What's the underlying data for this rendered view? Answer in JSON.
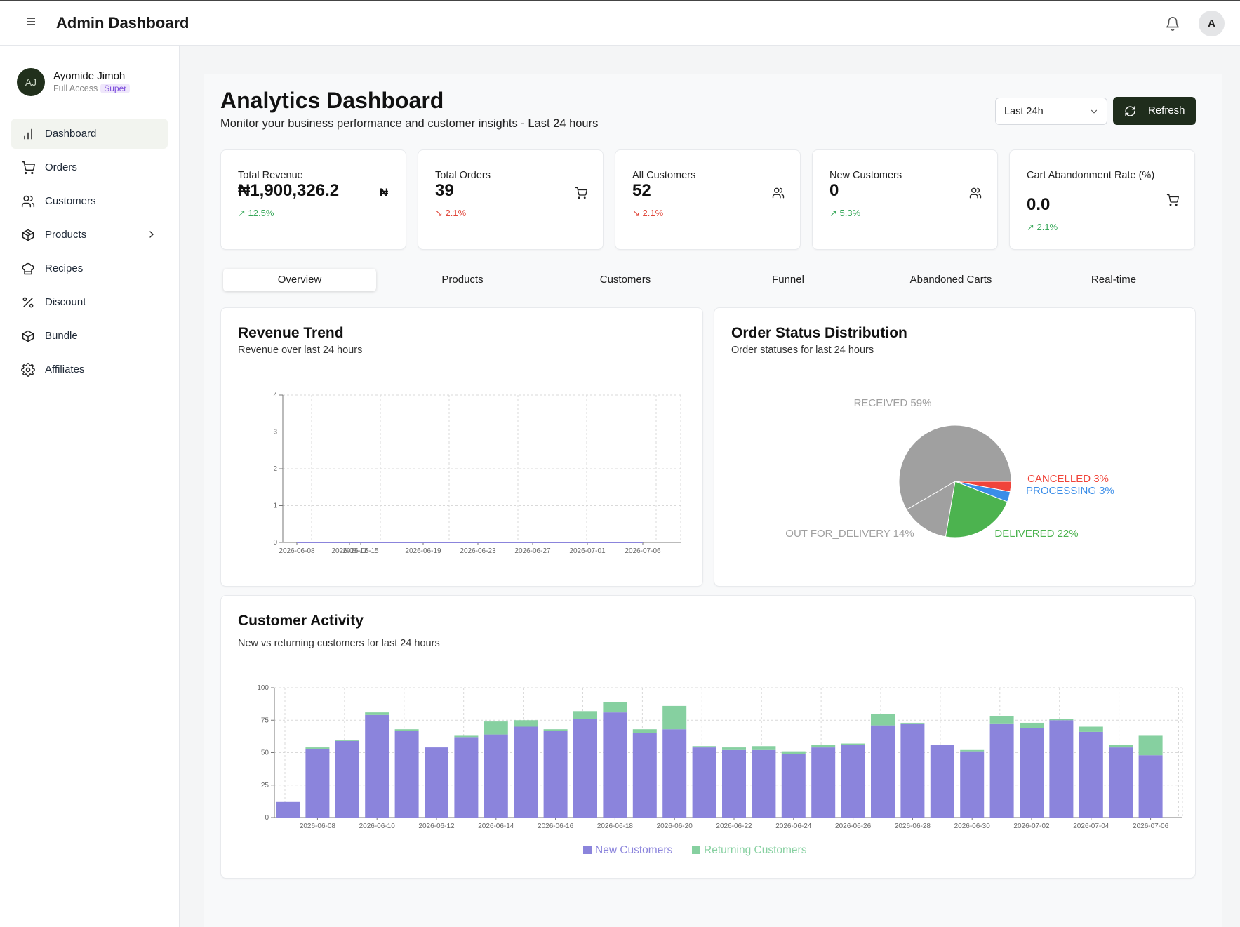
{
  "app": {
    "title": "Admin Dashboard",
    "avatar_initial": "A"
  },
  "user": {
    "initials": "AJ",
    "name": "Ayomide Jimoh",
    "access": "Full Access",
    "role_badge": "Super"
  },
  "sidebar": {
    "items": [
      {
        "label": "Dashboard",
        "icon": "bar-chart-icon",
        "active": true
      },
      {
        "label": "Orders",
        "icon": "cart-icon"
      },
      {
        "label": "Customers",
        "icon": "users-icon"
      },
      {
        "label": "Products",
        "icon": "box-icon",
        "has_submenu": true
      },
      {
        "label": "Recipes",
        "icon": "chef-hat-icon"
      },
      {
        "label": "Discount",
        "icon": "percent-icon"
      },
      {
        "label": "Bundle",
        "icon": "package-icon"
      },
      {
        "label": "Affiliates",
        "icon": "gear-icon"
      }
    ]
  },
  "header": {
    "title": "Analytics Dashboard",
    "subtitle": "Monitor your business performance and customer insights - Last 24 hours",
    "range_value": "Last 24h",
    "refresh_label": "Refresh"
  },
  "stats": [
    {
      "label": "Total Revenue",
      "value": "₦1,900,326.2",
      "change": "12.5%",
      "trend": "up",
      "icon": "naira-icon"
    },
    {
      "label": "Total Orders",
      "value": "39",
      "change": "2.1%",
      "trend": "down",
      "icon": "cart-icon"
    },
    {
      "label": "All Customers",
      "value": "52",
      "change": "2.1%",
      "trend": "down",
      "icon": "users-icon"
    },
    {
      "label": "New Customers",
      "value": "0",
      "change": "5.3%",
      "trend": "up",
      "icon": "users-icon"
    },
    {
      "label": "Cart Abandonment Rate (%)",
      "value": "0.0",
      "change": "2.1%",
      "trend": "up",
      "icon": "cart-icon"
    }
  ],
  "tabs": [
    {
      "label": "Overview",
      "active": true
    },
    {
      "label": "Products"
    },
    {
      "label": "Customers"
    },
    {
      "label": "Funnel"
    },
    {
      "label": "Abandoned Carts"
    },
    {
      "label": "Real-time"
    }
  ],
  "revenue_panel": {
    "title": "Revenue Trend",
    "subtitle": "Revenue over last 24 hours"
  },
  "status_panel": {
    "title": "Order Status Distribution",
    "subtitle": "Order statuses for last 24 hours"
  },
  "activity_panel": {
    "title": "Customer Activity",
    "subtitle": "New vs returning customers for last 24 hours"
  },
  "colors": {
    "accent_dark": "#1f2d1c",
    "up": "#38a85a",
    "down": "#e0463a",
    "new_customers": "#8b84dc",
    "returning_customers": "#86d0a0"
  },
  "chart_data": [
    {
      "type": "line",
      "title": "Revenue Trend",
      "x_ticks": [
        "2026-06-08",
        "2026-06-12",
        "2026-06-15",
        "2026-06-19",
        "2026-06-23",
        "2026-06-27",
        "2026-07-01",
        "2026-07-06"
      ],
      "y_ticks": [
        0,
        1,
        2,
        3,
        4
      ],
      "ylim": [
        0,
        4
      ],
      "series": [
        {
          "values": [
            0,
            0,
            0,
            0,
            0,
            0,
            0,
            0
          ],
          "color": "#8b84dc"
        }
      ],
      "grid": true
    },
    {
      "type": "pie",
      "title": "Order Status Distribution",
      "slices": [
        {
          "label": "RECEIVED",
          "value": 59,
          "color": "#a0a0a0"
        },
        {
          "label": "CANCELLED",
          "value": 3,
          "color": "#f0443a"
        },
        {
          "label": "PROCESSING",
          "value": 3,
          "color": "#3a8de8"
        },
        {
          "label": "DELIVERED",
          "value": 22,
          "color": "#4cb34f"
        },
        {
          "label": "OUT FOR_DELIVERY",
          "value": 14,
          "color": "#a0a0a0"
        }
      ]
    },
    {
      "type": "bar",
      "stacked": true,
      "title": "Customer Activity",
      "categories": [
        "2026-06-07",
        "2026-06-08",
        "2026-06-09",
        "2026-06-10",
        "2026-06-11",
        "2026-06-12",
        "2026-06-13",
        "2026-06-14",
        "2026-06-15",
        "2026-06-16",
        "2026-06-17",
        "2026-06-18",
        "2026-06-19",
        "2026-06-20",
        "2026-06-21",
        "2026-06-22",
        "2026-06-23",
        "2026-06-24",
        "2026-06-25",
        "2026-06-26",
        "2026-06-27",
        "2026-06-28",
        "2026-06-29",
        "2026-06-30",
        "2026-07-01",
        "2026-07-02",
        "2026-07-03",
        "2026-07-04",
        "2026-07-05",
        "2026-07-06"
      ],
      "x_tick_labels": [
        "2026-06-08",
        "2026-06-10",
        "2026-06-12",
        "2026-06-14",
        "2026-06-16",
        "2026-06-18",
        "2026-06-20",
        "2026-06-22",
        "2026-06-24",
        "2026-06-26",
        "2026-06-28",
        "2026-06-30",
        "2026-07-02",
        "2026-07-04",
        "2026-07-06"
      ],
      "y_ticks": [
        0,
        25,
        50,
        75,
        100
      ],
      "ylim": [
        0,
        100
      ],
      "series": [
        {
          "name": "New Customers",
          "color": "#8b84dc",
          "values": [
            12,
            53,
            59,
            79,
            67,
            54,
            62,
            64,
            70,
            67,
            76,
            81,
            65,
            68,
            54,
            52,
            52,
            49,
            54,
            56,
            71,
            72,
            56,
            51,
            72,
            69,
            75,
            66,
            54,
            48
          ]
        },
        {
          "name": "Returning Customers",
          "color": "#86d0a0",
          "values": [
            0,
            1,
            1,
            2,
            1,
            0,
            1,
            10,
            5,
            1,
            6,
            8,
            3,
            18,
            1,
            2,
            3,
            2,
            2,
            1,
            9,
            1,
            0,
            1,
            6,
            4,
            1,
            4,
            2,
            15
          ]
        }
      ],
      "legend": "bottom-center",
      "grid": true
    }
  ]
}
